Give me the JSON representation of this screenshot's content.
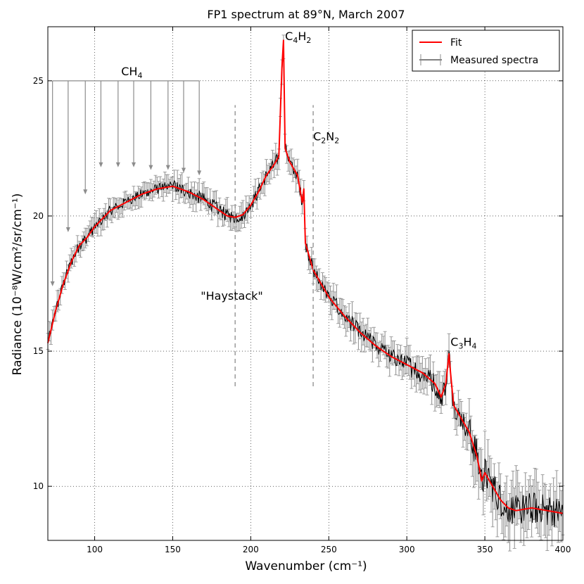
{
  "chart_data": {
    "type": "line",
    "title": "FP1 spectrum at 89°N, March 2007",
    "xlabel": "Wavenumber (cm⁻¹)",
    "ylabel": "Radiance (10⁻⁸W/cm²/sr/cm⁻¹)",
    "xlim": [
      70,
      400
    ],
    "ylim": [
      8,
      27
    ],
    "xticks": [
      100,
      150,
      200,
      250,
      300,
      350,
      400
    ],
    "yticks": [
      10,
      15,
      20,
      25
    ],
    "grid": true,
    "legend": {
      "position": "top-right",
      "entries": [
        "Fit",
        "Measured spectra"
      ]
    },
    "series": [
      {
        "name": "Fit",
        "color": "#ff0000",
        "x": [
          70,
          75,
          80,
          85,
          90,
          95,
          100,
          110,
          120,
          130,
          140,
          150,
          160,
          170,
          180,
          185,
          190,
          195,
          200,
          205,
          210,
          215,
          218,
          220,
          221,
          222,
          225,
          230,
          233,
          234,
          235,
          240,
          250,
          260,
          270,
          280,
          290,
          300,
          310,
          318,
          322,
          325,
          327,
          328,
          330,
          335,
          340,
          345,
          348,
          350,
          355,
          360,
          365,
          370,
          380,
          390,
          400
        ],
        "y": [
          15.3,
          16.5,
          17.5,
          18.3,
          18.9,
          19.2,
          19.6,
          20.2,
          20.5,
          20.8,
          21.0,
          21.1,
          20.9,
          20.6,
          20.2,
          20.0,
          19.95,
          20.05,
          20.4,
          20.9,
          21.5,
          21.9,
          22.2,
          25.5,
          26.5,
          22.5,
          22.0,
          21.5,
          20.5,
          21.0,
          19.0,
          18.0,
          17.0,
          16.3,
          15.7,
          15.2,
          14.8,
          14.5,
          14.2,
          13.8,
          13.3,
          13.8,
          14.9,
          14.2,
          13.0,
          12.5,
          12.0,
          11.1,
          10.2,
          10.5,
          10.0,
          9.5,
          9.2,
          9.1,
          9.2,
          9.1,
          9.0
        ]
      },
      {
        "name": "Measured spectra",
        "color": "#000000",
        "error_color": "#8c8c8c",
        "x_start": 70,
        "x_step": 0.5,
        "base_curve": "Fit",
        "noise_amplitude": [
          0.2,
          0.25,
          0.3,
          0.4,
          0.6
        ],
        "error_bar": [
          0.3,
          0.35,
          0.4,
          0.5,
          0.8
        ]
      }
    ],
    "annotations": [
      {
        "text_base": "CH",
        "text_sub": "4",
        "x": 117,
        "y": 25.2,
        "kind": "methane-comb",
        "comb_x": [
          73,
          83,
          94,
          104,
          115,
          125,
          136,
          147,
          157,
          167
        ],
        "comb_y_top": 25.0,
        "comb_y_tips": [
          17.4,
          19.4,
          20.8,
          21.8,
          21.8,
          21.8,
          21.7,
          21.7,
          21.6,
          21.5
        ]
      },
      {
        "text_base": "C",
        "text_sub": "4",
        "text_base2": "H",
        "text_sub2": "2",
        "x": 222,
        "y": 26.5
      },
      {
        "text_base": "C",
        "text_sub": "2",
        "text_base2": "N",
        "text_sub2": "2",
        "x": 240,
        "y": 22.8
      },
      {
        "text_base": "C",
        "text_sub": "3",
        "text_base2": "H",
        "text_sub2": "4",
        "x": 328,
        "y": 15.2
      },
      {
        "text": "\"Haystack\"",
        "x": 195,
        "y": 16.9,
        "dashed_lines_x": [
          190,
          240
        ],
        "dashed_y": [
          13.7,
          24.1
        ]
      }
    ]
  }
}
